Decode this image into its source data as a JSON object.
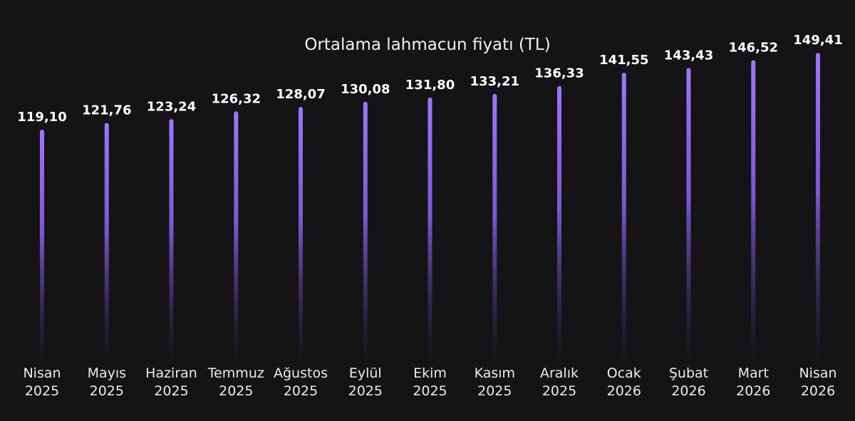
{
  "chart_data": {
    "type": "bar",
    "title": "Ortalama lahmacun fiyatı (TL)",
    "xlabel": "",
    "ylabel": "",
    "categories": [
      {
        "month": "Nisan",
        "year": "2025"
      },
      {
        "month": "Mayıs",
        "year": "2025"
      },
      {
        "month": "Haziran",
        "year": "2025"
      },
      {
        "month": "Temmuz",
        "year": "2025"
      },
      {
        "month": "Ağustos",
        "year": "2025"
      },
      {
        "month": "Eylül",
        "year": "2025"
      },
      {
        "month": "Ekim",
        "year": "2025"
      },
      {
        "month": "Kasım",
        "year": "2025"
      },
      {
        "month": "Aralık",
        "year": "2025"
      },
      {
        "month": "Ocak",
        "year": "2026"
      },
      {
        "month": "Şubat",
        "year": "2026"
      },
      {
        "month": "Mart",
        "year": "2026"
      },
      {
        "month": "Nisan",
        "year": "2026"
      }
    ],
    "values": [
      119.1,
      121.76,
      123.24,
      126.32,
      128.07,
      130.08,
      131.8,
      133.21,
      136.33,
      141.55,
      143.43,
      146.52,
      149.41
    ],
    "value_labels": [
      "119,10",
      "121,76",
      "123,24",
      "126,32",
      "128,07",
      "130,08",
      "131,80",
      "133,21",
      "136,33",
      "141,55",
      "143,43",
      "146,52",
      "149,41"
    ],
    "grid": false,
    "legend": "none",
    "colors": {
      "background": "#141316",
      "bar": "#9b6cf2",
      "text": "#ffffff"
    }
  }
}
